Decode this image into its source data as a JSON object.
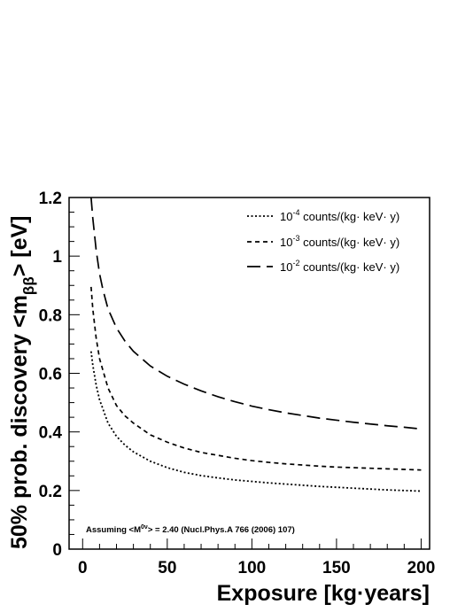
{
  "chart_data": {
    "type": "line",
    "xlabel": "Exposure [kg·years]",
    "ylabel": {
      "main": "50% prob. discovery <m",
      "subscript": "ββ",
      "suffix": "> [eV]"
    },
    "xlim": [
      -8,
      205
    ],
    "ylim": [
      0,
      1.2
    ],
    "x_ticks": [
      "0",
      "50",
      "100",
      "150",
      "200"
    ],
    "y_ticks": [
      "0",
      "0.2",
      "0.4",
      "0.6",
      "0.8",
      "1",
      "1.2"
    ],
    "legend_position": "top-right",
    "series": [
      {
        "name": {
          "base": "10",
          "exp": "-4",
          "rest": " counts/(kg· keV· y)"
        },
        "style": "dotted",
        "x": [
          5,
          6,
          8,
          10,
          15,
          20,
          25,
          30,
          40,
          50,
          60,
          70,
          80,
          90,
          100,
          110,
          120,
          130,
          140,
          150,
          160,
          170,
          180,
          190,
          200
        ],
        "y": [
          0.675,
          0.628,
          0.56,
          0.51,
          0.43,
          0.385,
          0.355,
          0.332,
          0.3,
          0.278,
          0.262,
          0.251,
          0.243,
          0.236,
          0.231,
          0.226,
          0.222,
          0.218,
          0.214,
          0.211,
          0.208,
          0.205,
          0.202,
          0.2,
          0.198
        ]
      },
      {
        "name": {
          "base": "10",
          "exp": "-3",
          "rest": " counts/(kg· keV· y)"
        },
        "style": "dashed",
        "x": [
          5,
          6,
          8,
          10,
          15,
          20,
          25,
          30,
          40,
          50,
          60,
          70,
          80,
          90,
          100,
          110,
          120,
          130,
          140,
          150,
          160,
          170,
          180,
          190,
          200
        ],
        "y": [
          0.895,
          0.82,
          0.72,
          0.65,
          0.55,
          0.49,
          0.455,
          0.43,
          0.39,
          0.365,
          0.345,
          0.33,
          0.32,
          0.31,
          0.302,
          0.296,
          0.291,
          0.287,
          0.283,
          0.28,
          0.278,
          0.276,
          0.274,
          0.272,
          0.27
        ]
      },
      {
        "name": {
          "base": "10",
          "exp": "-2",
          "rest": " counts/(kg· keV· y)"
        },
        "style": "long-dashed",
        "x": [
          5,
          6,
          8,
          10,
          12,
          15,
          20,
          25,
          30,
          40,
          50,
          60,
          70,
          80,
          90,
          100,
          110,
          120,
          130,
          140,
          150,
          160,
          170,
          180,
          190,
          200
        ],
        "y": [
          1.2,
          1.13,
          1.02,
          0.94,
          0.885,
          0.82,
          0.755,
          0.71,
          0.675,
          0.625,
          0.59,
          0.563,
          0.54,
          0.52,
          0.503,
          0.488,
          0.476,
          0.465,
          0.456,
          0.447,
          0.44,
          0.433,
          0.427,
          0.421,
          0.416,
          0.41
        ]
      }
    ],
    "annotation": {
      "before": "Assuming <M",
      "sup": "0ν",
      "after": "> = 2.40 (Nucl.Phys.A 766 (2006) 107)"
    }
  }
}
